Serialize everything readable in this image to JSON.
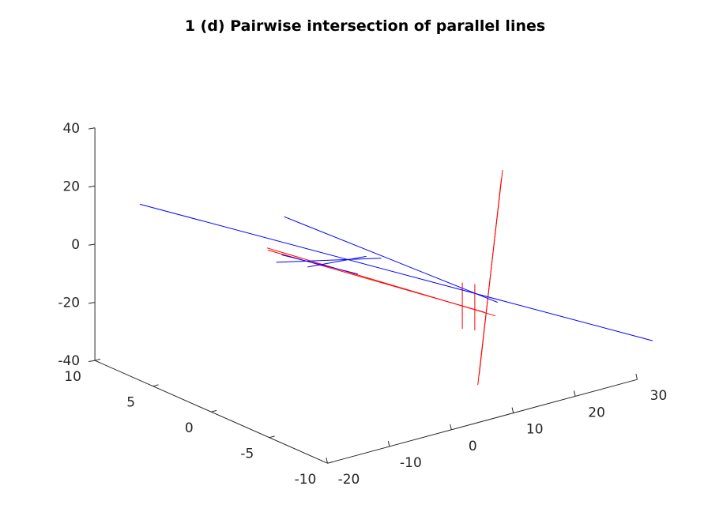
{
  "chart_data": {
    "type": "line",
    "title": "1 (d) Pairwise intersection of parallel lines",
    "xlabel": "",
    "ylabel": "",
    "zlabel": "",
    "view": "3d",
    "grid": false,
    "axes": {
      "x": {
        "range": [
          -20,
          30
        ],
        "ticks": [
          -20,
          -10,
          0,
          10,
          20,
          30
        ],
        "tick_labels": [
          "-20",
          "-10",
          "0",
          "10",
          "20",
          "30"
        ]
      },
      "y": {
        "range": [
          -10,
          10
        ],
        "ticks": [
          -10,
          -5,
          0,
          5,
          10
        ],
        "tick_labels": [
          "-10",
          "-5",
          "0",
          "5",
          "10"
        ]
      },
      "z": {
        "range": [
          -40,
          40
        ],
        "ticks": [
          -40,
          -20,
          0,
          20,
          40
        ],
        "tick_labels": [
          "-40",
          "-20",
          "0",
          "20",
          "40"
        ]
      }
    },
    "colors": {
      "red": "#ff0000",
      "blue": "#0000ff",
      "axis": "#262626"
    },
    "series": [
      {
        "color": "#ff0000",
        "x": [
          5.2,
          18.4
        ],
        "y": [
          -9.5,
          -4.6
        ],
        "z": [
          -28.5,
          29.2
        ]
      },
      {
        "color": "#ff0000",
        "x": [
          5.6,
          18.2
        ],
        "y": [
          -9.4,
          -4.6
        ],
        "z": [
          -25.6,
          26.2
        ]
      },
      {
        "color": "#ff0000",
        "x": [
          -17.6,
          20.4
        ],
        "y": [
          -3.6,
          -2.0
        ],
        "z": [
          20.6,
          -25.5
        ]
      },
      {
        "color": "#ff0000",
        "x": [
          -17.0,
          21.0
        ],
        "y": [
          -3.2,
          -2.6
        ],
        "z": [
          20.3,
          -26.0
        ]
      },
      {
        "color": "#ff0000",
        "x": [
          4.2,
          4.2
        ],
        "y": [
          -8.7,
          -8.7
        ],
        "z": [
          5.9,
          -10.0
        ]
      },
      {
        "color": "#ff0000",
        "x": [
          4.9,
          4.9
        ],
        "y": [
          -9.4,
          -9.4
        ],
        "z": [
          6.2,
          -9.7
        ]
      },
      {
        "color": "#0000ff",
        "x": [
          -25.9,
          33.6
        ],
        "y": [
          3.0,
          -9.4
        ],
        "z": [
          29.5,
          -29.8
        ]
      },
      {
        "color": "#0000ff",
        "x": [
          -14.8,
          28.3
        ],
        "y": [
          -3.5,
          1.1
        ],
        "z": [
          30.3,
          -32.1
        ]
      },
      {
        "color": "#0000ff",
        "x": [
          -16.5,
          12.5
        ],
        "y": [
          -4.2,
          4.7
        ],
        "z": [
          19.4,
          -19.6
        ]
      },
      {
        "color": "#0000ff",
        "x": [
          -15.5,
          14.4
        ],
        "y": [
          -3.2,
          3.7
        ],
        "z": [
          14.5,
          -13.5
        ]
      },
      {
        "color": "#0000ff",
        "x": [
          -5.2,
          5.6
        ],
        "y": [
          -0.4,
          0.3
        ],
        "z": [
          2.0,
          -1.8
        ]
      }
    ]
  }
}
